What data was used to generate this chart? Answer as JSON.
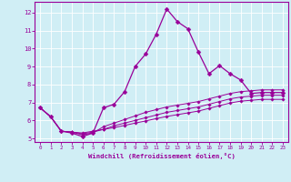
{
  "xlabel": "Windchill (Refroidissement éolien,°C)",
  "bg_color": "#d0eef5",
  "grid_color": "#b8dde8",
  "line_color": "#990099",
  "axis_color": "#990099",
  "xlim": [
    -0.5,
    23.5
  ],
  "ylim": [
    4.8,
    12.6
  ],
  "yticks": [
    5,
    6,
    7,
    8,
    9,
    10,
    11,
    12
  ],
  "xticks": [
    0,
    1,
    2,
    3,
    4,
    5,
    6,
    7,
    8,
    9,
    10,
    11,
    12,
    13,
    14,
    15,
    16,
    17,
    18,
    19,
    20,
    21,
    22,
    23
  ],
  "series": [
    [
      6.7,
      6.2,
      5.4,
      5.3,
      5.1,
      5.3,
      6.7,
      6.9,
      7.6,
      9.0,
      9.7,
      10.8,
      12.2,
      11.5,
      11.1,
      9.8,
      8.6,
      9.05,
      8.6,
      8.25,
      7.5,
      7.55,
      7.55,
      7.55
    ],
    [
      6.7,
      6.2,
      5.4,
      5.35,
      5.2,
      5.3,
      5.65,
      5.85,
      6.05,
      6.25,
      6.45,
      6.6,
      6.75,
      6.85,
      6.95,
      7.05,
      7.2,
      7.35,
      7.5,
      7.6,
      7.65,
      7.7,
      7.7,
      7.7
    ],
    [
      6.7,
      6.2,
      5.4,
      5.35,
      5.25,
      5.35,
      5.5,
      5.7,
      5.85,
      6.0,
      6.15,
      6.3,
      6.45,
      6.55,
      6.65,
      6.75,
      6.9,
      7.05,
      7.2,
      7.3,
      7.35,
      7.4,
      7.4,
      7.4
    ],
    [
      6.7,
      6.2,
      5.4,
      5.35,
      5.3,
      5.4,
      5.5,
      5.6,
      5.72,
      5.85,
      5.97,
      6.1,
      6.22,
      6.32,
      6.42,
      6.52,
      6.67,
      6.82,
      6.97,
      7.07,
      7.12,
      7.17,
      7.17,
      7.17
    ]
  ]
}
